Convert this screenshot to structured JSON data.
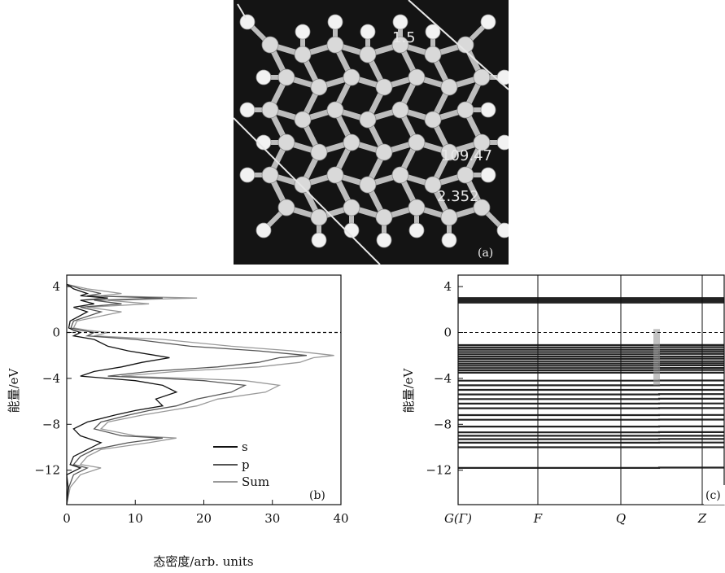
{
  "chart_data": [
    {
      "type": "image",
      "panel_label": "(a)",
      "annotations": [
        "109.47",
        "2.352",
        "1.5"
      ]
    },
    {
      "type": "line",
      "panel_label": "(b)",
      "xlabel": "态密度/arb. units",
      "ylabel": "能量/eV",
      "xlim": [
        0,
        40
      ],
      "ylim": [
        -15,
        5
      ],
      "xticks": [
        "0",
        "10",
        "20",
        "30",
        "40"
      ],
      "yticks": [
        "4",
        "0",
        "−4",
        "−8",
        "−12"
      ],
      "fermi_level": 0,
      "legend_position": "right",
      "series": [
        {
          "name": "s",
          "color": "#111111",
          "points": [
            [
              0,
              4.2
            ],
            [
              1,
              3.8
            ],
            [
              3,
              3.4
            ],
            [
              2,
              3.2
            ],
            [
              6,
              3.0
            ],
            [
              2,
              2.8
            ],
            [
              4,
              2.5
            ],
            [
              1,
              2.2
            ],
            [
              3,
              1.8
            ],
            [
              0.5,
              1.0
            ],
            [
              0.3,
              0.4
            ],
            [
              1,
              0.2
            ],
            [
              2,
              0
            ],
            [
              1,
              -0.3
            ],
            [
              4,
              -0.6
            ],
            [
              6,
              -1.2
            ],
            [
              9,
              -1.6
            ],
            [
              13,
              -2.0
            ],
            [
              15,
              -2.2
            ],
            [
              11,
              -2.6
            ],
            [
              8,
              -3.0
            ],
            [
              4,
              -3.4
            ],
            [
              2,
              -3.8
            ],
            [
              6,
              -4.0
            ],
            [
              10,
              -4.2
            ],
            [
              14,
              -4.6
            ],
            [
              16,
              -5.2
            ],
            [
              13,
              -5.8
            ],
            [
              14,
              -6.4
            ],
            [
              10,
              -6.8
            ],
            [
              7,
              -7.2
            ],
            [
              3,
              -7.8
            ],
            [
              1,
              -8.4
            ],
            [
              2,
              -9.0
            ],
            [
              5,
              -9.6
            ],
            [
              3,
              -10.2
            ],
            [
              1,
              -10.8
            ],
            [
              0.5,
              -11.5
            ],
            [
              2,
              -11.8
            ],
            [
              0,
              -12.4
            ],
            [
              0.2,
              -13.5
            ],
            [
              0,
              -15
            ]
          ]
        },
        {
          "name": "p",
          "color": "#555555",
          "points": [
            [
              0,
              4.2
            ],
            [
              2,
              3.8
            ],
            [
              5,
              3.4
            ],
            [
              3,
              3.2
            ],
            [
              14,
              3.0
            ],
            [
              4,
              2.8
            ],
            [
              8,
              2.5
            ],
            [
              2,
              2.2
            ],
            [
              5,
              1.8
            ],
            [
              1,
              1.0
            ],
            [
              0.6,
              0.4
            ],
            [
              2,
              0.2
            ],
            [
              4,
              0
            ],
            [
              3,
              -0.3
            ],
            [
              10,
              -0.6
            ],
            [
              18,
              -1.2
            ],
            [
              28,
              -1.6
            ],
            [
              35,
              -2.0
            ],
            [
              31,
              -2.2
            ],
            [
              28,
              -2.6
            ],
            [
              22,
              -3.0
            ],
            [
              12,
              -3.4
            ],
            [
              6,
              -3.8
            ],
            [
              14,
              -4.0
            ],
            [
              20,
              -4.2
            ],
            [
              26,
              -4.6
            ],
            [
              24,
              -5.2
            ],
            [
              19,
              -5.8
            ],
            [
              16,
              -6.4
            ],
            [
              12,
              -6.8
            ],
            [
              9,
              -7.2
            ],
            [
              5,
              -7.8
            ],
            [
              4,
              -8.4
            ],
            [
              8,
              -9.0
            ],
            [
              14,
              -9.2
            ],
            [
              9,
              -9.6
            ],
            [
              4,
              -10.2
            ],
            [
              2,
              -10.8
            ],
            [
              1,
              -11.5
            ],
            [
              3,
              -11.8
            ],
            [
              1,
              -12.4
            ],
            [
              0.3,
              -13.5
            ],
            [
              0,
              -15
            ]
          ]
        },
        {
          "name": "Sum",
          "color": "#999999",
          "points": [
            [
              0,
              4.2
            ],
            [
              3,
              3.8
            ],
            [
              8,
              3.4
            ],
            [
              5,
              3.2
            ],
            [
              19,
              3.0
            ],
            [
              6,
              2.8
            ],
            [
              12,
              2.5
            ],
            [
              3,
              2.2
            ],
            [
              8,
              1.8
            ],
            [
              1.5,
              1.0
            ],
            [
              1,
              0.4
            ],
            [
              3,
              0.2
            ],
            [
              6,
              0
            ],
            [
              4,
              -0.3
            ],
            [
              14,
              -0.6
            ],
            [
              24,
              -1.2
            ],
            [
              33,
              -1.6
            ],
            [
              39,
              -2.0
            ],
            [
              36,
              -2.2
            ],
            [
              34,
              -2.6
            ],
            [
              28,
              -3.0
            ],
            [
              16,
              -3.4
            ],
            [
              8,
              -3.8
            ],
            [
              18,
              -4.0
            ],
            [
              26,
              -4.2
            ],
            [
              31,
              -4.6
            ],
            [
              29,
              -5.2
            ],
            [
              22,
              -5.8
            ],
            [
              19,
              -6.4
            ],
            [
              15,
              -6.8
            ],
            [
              11,
              -7.2
            ],
            [
              6,
              -7.8
            ],
            [
              5,
              -8.4
            ],
            [
              10,
              -9.0
            ],
            [
              16,
              -9.2
            ],
            [
              12,
              -9.6
            ],
            [
              5,
              -10.2
            ],
            [
              3,
              -10.8
            ],
            [
              2,
              -11.5
            ],
            [
              5,
              -11.8
            ],
            [
              2,
              -12.4
            ],
            [
              0.5,
              -13.5
            ],
            [
              0,
              -15
            ]
          ]
        }
      ]
    },
    {
      "type": "line",
      "panel_label": "(c)",
      "ylabel": "能量/eV",
      "ylim": [
        -15,
        5
      ],
      "yticks": [
        "4",
        "0",
        "−4",
        "−8",
        "−12"
      ],
      "xticks": [
        "G(Γ)",
        "F",
        "Q",
        "Z"
      ],
      "fermi_level": 0,
      "bands": [
        3.0,
        2.9,
        2.8,
        2.7,
        2.6,
        -1.1,
        -1.3,
        -1.5,
        -1.7,
        -1.9,
        -2.1,
        -2.3,
        -2.5,
        -2.7,
        -2.9,
        -3.1,
        -3.3,
        -3.5,
        -4.2,
        -4.6,
        -5.0,
        -5.4,
        -5.8,
        -6.2,
        -6.6,
        -7.2,
        -7.6,
        -8.2,
        -8.7,
        -9.0,
        -9.3,
        -9.6,
        -10.0,
        -11.8
      ]
    }
  ]
}
